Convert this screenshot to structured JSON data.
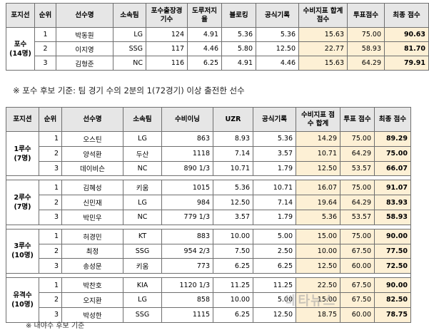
{
  "catcher_table": {
    "headers": [
      "포지선",
      "순위",
      "선수명",
      "소속팀",
      "포수출장경기수",
      "도루저지율",
      "블로킹",
      "공식기록",
      "수비지표 합계 점수",
      "투표점수",
      "최종 점수"
    ],
    "position_label": "포수",
    "position_count": "(14명)",
    "rows": [
      {
        "rank": "1",
        "name": "박동원",
        "team": "LG",
        "games": "124",
        "cs": "4.91",
        "block": "5.36",
        "official": "5.36",
        "def": "15.63",
        "vote": "75.00",
        "final": "90.63"
      },
      {
        "rank": "2",
        "name": "이지영",
        "team": "SSG",
        "games": "117",
        "cs": "4.46",
        "block": "5.80",
        "official": "12.50",
        "def": "22.77",
        "vote": "58.93",
        "final": "81.70"
      },
      {
        "rank": "3",
        "name": "김형준",
        "team": "NC",
        "games": "116",
        "cs": "6.25",
        "block": "4.91",
        "official": "4.46",
        "def": "15.63",
        "vote": "64.29",
        "final": "79.91"
      }
    ]
  },
  "note": "※ 포수 후보 기준: 팀 경기 수의 2분의 1(72경기) 이상 출전한 선수",
  "infield_table": {
    "headers": [
      "포지션",
      "순위",
      "선수명",
      "소속팀",
      "수비이닝",
      "UZR",
      "공식기록",
      "수비지표 점수 합계",
      "투표 점수",
      "최종 점수"
    ],
    "groups": [
      {
        "position": "1루수",
        "count": "(7명)",
        "rows": [
          {
            "rank": "1",
            "name": "오스틴",
            "team": "LG",
            "innings": "863",
            "uzr": "8.93",
            "official": "5.36",
            "def": "14.29",
            "vote": "75.00",
            "final": "89.29"
          },
          {
            "rank": "2",
            "name": "양석환",
            "team": "두산",
            "innings": "1118",
            "uzr": "7.14",
            "official": "3.57",
            "def": "10.71",
            "vote": "64.29",
            "final": "75.00"
          },
          {
            "rank": "3",
            "name": "데이비슨",
            "team": "NC",
            "innings": "890 1/3",
            "uzr": "10.71",
            "official": "1.79",
            "def": "12.50",
            "vote": "53.57",
            "final": "66.07"
          }
        ]
      },
      {
        "position": "2루수",
        "count": "(7명)",
        "rows": [
          {
            "rank": "1",
            "name": "김혜성",
            "team": "키움",
            "innings": "1015",
            "uzr": "5.36",
            "official": "10.71",
            "def": "16.07",
            "vote": "75.00",
            "final": "91.07"
          },
          {
            "rank": "2",
            "name": "신민재",
            "team": "LG",
            "innings": "984",
            "uzr": "12.50",
            "official": "7.14",
            "def": "19.64",
            "vote": "64.29",
            "final": "83.93"
          },
          {
            "rank": "3",
            "name": "박민우",
            "team": "NC",
            "innings": "779 1/3",
            "uzr": "3.57",
            "official": "1.79",
            "def": "5.36",
            "vote": "53.57",
            "final": "58.93"
          }
        ]
      },
      {
        "position": "3루수",
        "count": "(10명)",
        "rows": [
          {
            "rank": "1",
            "name": "허경민",
            "team": "KT",
            "innings": "883",
            "uzr": "10.00",
            "official": "5.00",
            "def": "15.00",
            "vote": "75.00",
            "final": "90.00"
          },
          {
            "rank": "2",
            "name": "최정",
            "team": "SSG",
            "innings": "954 2/3",
            "uzr": "7.50",
            "official": "2.50",
            "def": "10.00",
            "vote": "67.50",
            "final": "77.50"
          },
          {
            "rank": "3",
            "name": "송성문",
            "team": "키움",
            "innings": "773",
            "uzr": "6.25",
            "official": "6.25",
            "def": "12.50",
            "vote": "60.00",
            "final": "72.50"
          }
        ]
      },
      {
        "position": "유격수",
        "count": "(10명)",
        "rows": [
          {
            "rank": "1",
            "name": "박찬호",
            "team": "KIA",
            "innings": "1120 1/3",
            "uzr": "11.25",
            "official": "11.25",
            "def": "22.50",
            "vote": "67.50",
            "final": "90.00"
          },
          {
            "rank": "2",
            "name": "오지환",
            "team": "LG",
            "innings": "858",
            "uzr": "10.00",
            "official": "5.00",
            "def": "15.00",
            "vote": "67.50",
            "final": "82.50"
          },
          {
            "rank": "3",
            "name": "박성한",
            "team": "SSG",
            "innings": "1115",
            "uzr": "6.25",
            "official": "12.50",
            "def": "18.75",
            "vote": "60.00",
            "final": "78.75"
          }
        ]
      }
    ]
  },
  "watermark": "베타뉴스",
  "bottom_text": "※ 내야수 후보 기준"
}
